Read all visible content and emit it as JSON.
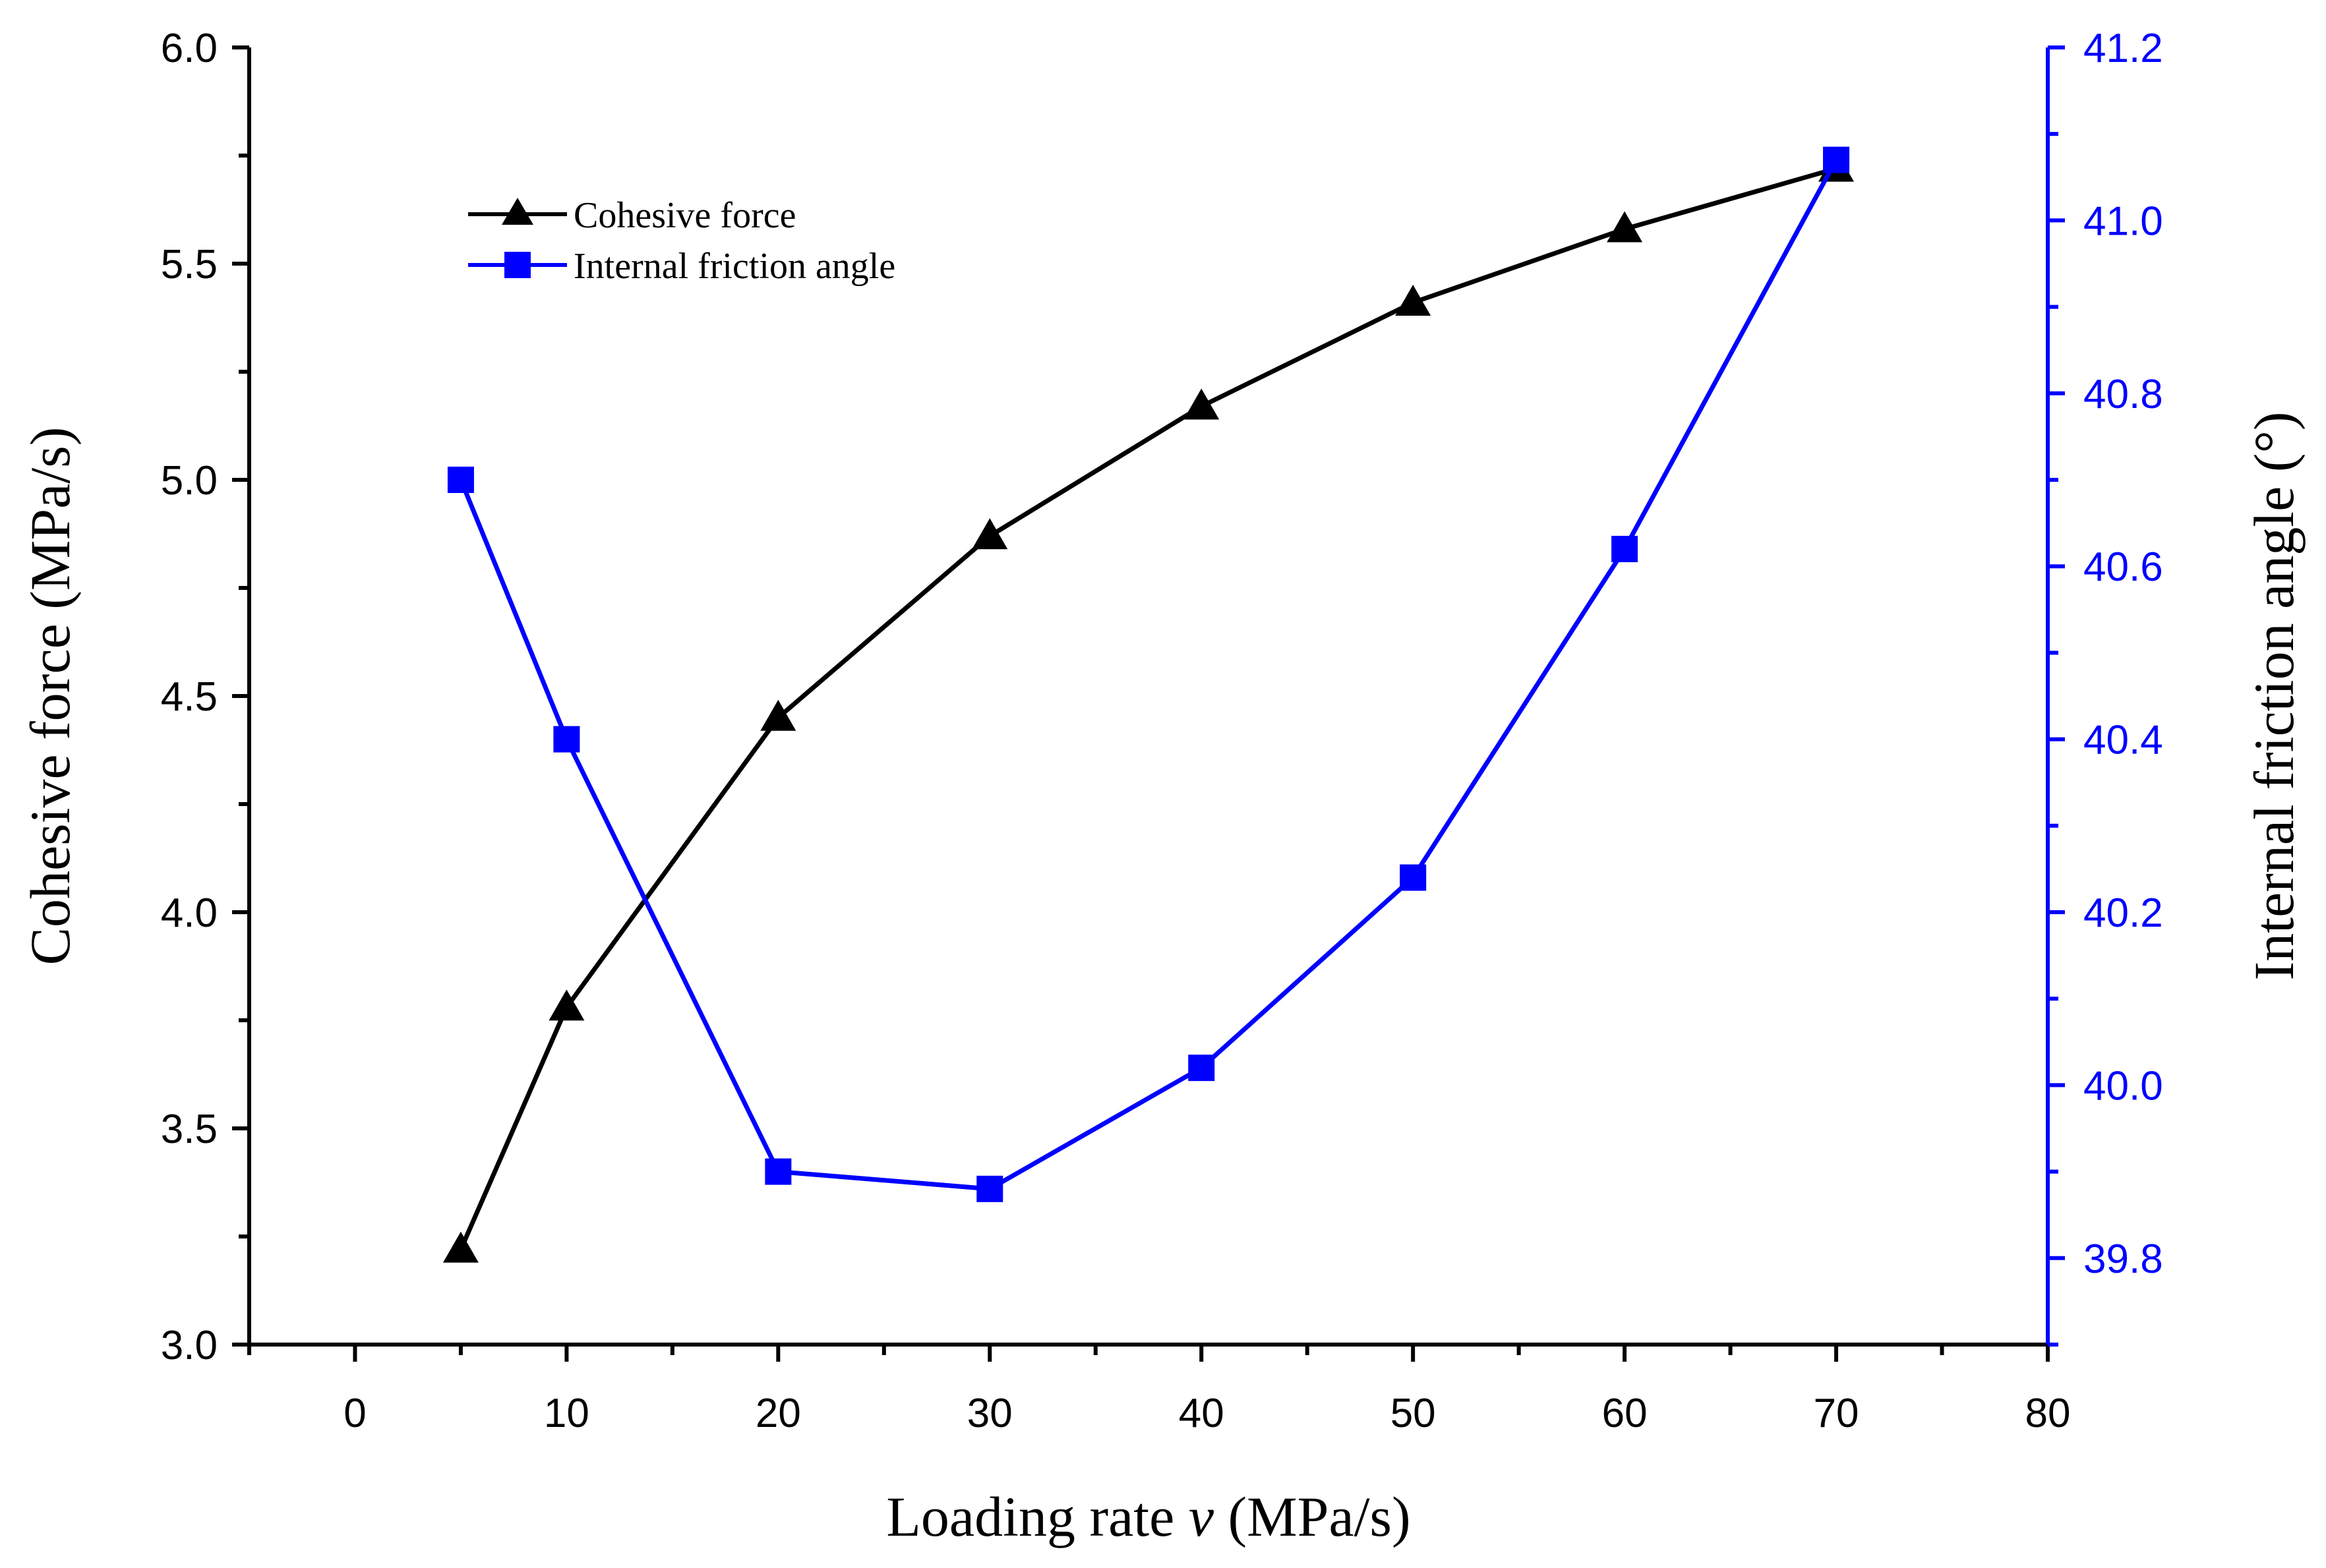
{
  "chart_data": {
    "type": "line",
    "x": [
      5,
      10,
      20,
      30,
      40,
      50,
      60,
      70
    ],
    "xlabel_parts": [
      "Loading rate ",
      "v",
      " (MPa/s)"
    ],
    "ylabel": "Cohesive force (MPa/s)",
    "y2label": "Internal friction angle (°)",
    "xlim": [
      -5,
      80
    ],
    "ylim": [
      3.0,
      6.0
    ],
    "y2lim": [
      39.7,
      41.2
    ],
    "xticks": [
      "0",
      "10",
      "20",
      "30",
      "40",
      "50",
      "60",
      "70",
      "80"
    ],
    "yticks": [
      "3.0",
      "3.5",
      "4.0",
      "4.5",
      "5.0",
      "5.5",
      "6.0"
    ],
    "y2ticks": [
      "39.8",
      "40.0",
      "40.2",
      "40.4",
      "40.6",
      "40.8",
      "41.0",
      "41.2"
    ],
    "legend_position": "top-left",
    "grid": false,
    "series": [
      {
        "name": "Cohesive force",
        "axis": "left",
        "marker": "triangle",
        "color": "#000000",
        "values": [
          3.22,
          3.78,
          4.45,
          4.87,
          5.17,
          5.41,
          5.58,
          5.72
        ]
      },
      {
        "name": "Internal friction angle",
        "axis": "right",
        "marker": "square",
        "color": "#0000ff",
        "values": [
          40.7,
          40.4,
          39.9,
          39.88,
          40.02,
          40.24,
          40.62,
          41.07
        ]
      }
    ]
  }
}
